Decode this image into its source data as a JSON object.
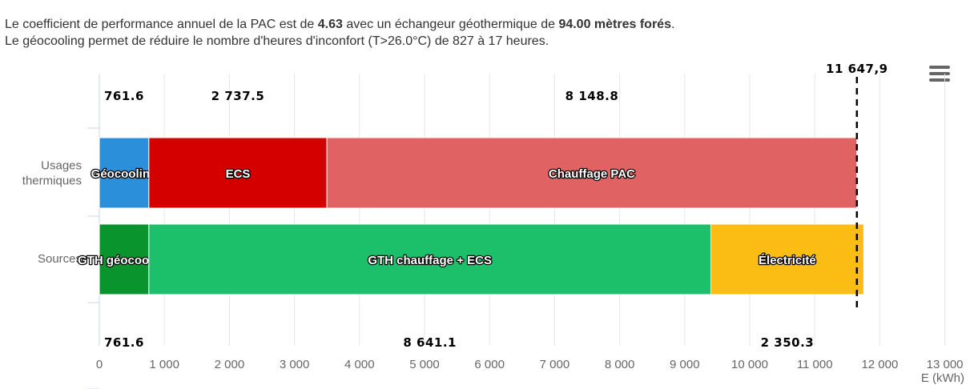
{
  "summary": {
    "line1_pre": "Le coefficient de performance annuel de la PAC est de ",
    "cop": "4.63",
    "line1_mid": " avec un échangeur géothermique de ",
    "depth": "94.00 mètres forés",
    "line1_post": ".",
    "line2": "Le géocooling permet de réduire le nombre d'heures d'inconfort (T>26.0°C) de 827 à 17 heures."
  },
  "menu": {
    "icon": "hamburger-menu-icon"
  },
  "chart_data": {
    "type": "bar",
    "orientation": "horizontal",
    "stacked": true,
    "xlim": [
      0,
      13000
    ],
    "xticks": [
      "0",
      "1 000",
      "2 000",
      "3 000",
      "4 000",
      "5 000",
      "6 000",
      "7 000",
      "8 000",
      "9 000",
      "10 000",
      "11 000",
      "12 000",
      "13 000"
    ],
    "xlabel": "E (kWh)",
    "grid": true,
    "reference_line": {
      "value": 11647.9,
      "label": "11 647,9",
      "style": "dashed"
    },
    "categories": [
      {
        "name": "Usages thermiques",
        "label_lines": [
          "Usages",
          "thermiques"
        ],
        "segments": [
          {
            "name": "Géocooling",
            "value": 761.6,
            "value_label": "761.6",
            "color": "#2b90d9"
          },
          {
            "name": "ECS",
            "value": 2737.5,
            "value_label": "2 737.5",
            "color": "#d40000"
          },
          {
            "name": "Chauffage PAC",
            "value": 8148.8,
            "value_label": "8 148.8",
            "color": "#e06262"
          }
        ]
      },
      {
        "name": "Sources",
        "label_lines": [
          "Sources"
        ],
        "segments": [
          {
            "name": "GTH géocooling",
            "value": 761.6,
            "value_label": "761.6",
            "color": "#0a942e"
          },
          {
            "name": "GTH chauffage + ECS",
            "value": 8641.1,
            "value_label": "8 641.1",
            "color": "#1cc06b"
          },
          {
            "name": "Électricité",
            "value": 2350.3,
            "value_label": "2 350.3",
            "color": "#fbbd13"
          }
        ]
      }
    ]
  }
}
